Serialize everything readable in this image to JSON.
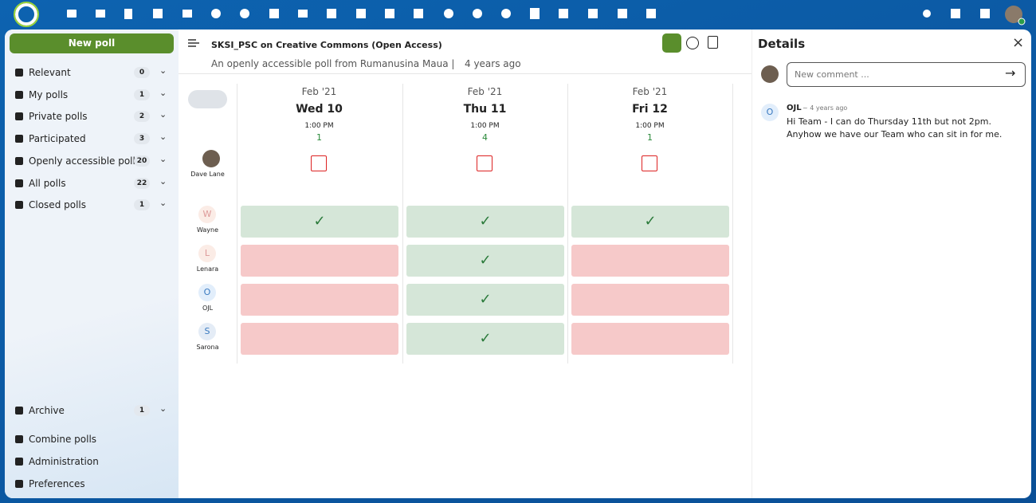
{
  "sidebar": {
    "new_poll": "New poll",
    "items": [
      {
        "label": "Relevant",
        "count": "0"
      },
      {
        "label": "My polls",
        "count": "1"
      },
      {
        "label": "Private polls",
        "count": "2"
      },
      {
        "label": "Participated",
        "count": "3"
      },
      {
        "label": "Openly accessible polls",
        "count": "20"
      },
      {
        "label": "All polls",
        "count": "22"
      },
      {
        "label": "Closed polls",
        "count": "1"
      }
    ],
    "archive": {
      "label": "Archive",
      "count": "1"
    },
    "footer": [
      "Combine polls",
      "Administration",
      "Preferences"
    ]
  },
  "header": {
    "title": "SKSI_PSC on Creative Commons (Open Access)",
    "subtitle": "An openly accessible poll from Rumanusina Maua |",
    "age": "4 years ago"
  },
  "poll": {
    "current_user": "Dave Lane",
    "options": [
      {
        "month": "Feb '21",
        "day": "Wed 10",
        "time": "1:00 PM",
        "yes": "1"
      },
      {
        "month": "Feb '21",
        "day": "Thu 11",
        "time": "1:00 PM",
        "yes": "4"
      },
      {
        "month": "Feb '21",
        "day": "Fri 12",
        "time": "1:00 PM",
        "yes": "1"
      }
    ],
    "participants": [
      {
        "initial": "W",
        "name": "Wayne",
        "votes": [
          true,
          true,
          true
        ]
      },
      {
        "initial": "L",
        "name": "Lenara",
        "votes": [
          false,
          true,
          false
        ]
      },
      {
        "initial": "O",
        "name": "OJL",
        "votes": [
          false,
          true,
          false
        ]
      },
      {
        "initial": "S",
        "name": "Sarona",
        "votes": [
          false,
          true,
          false
        ]
      }
    ]
  },
  "details": {
    "title": "Details",
    "placeholder": "New comment ...",
    "comments": [
      {
        "initial": "O",
        "author": "OJL",
        "age": "~ 4 years ago",
        "text": "Hi Team - I can do Thursday 11th but not 2pm. Anyhow we have our Team who can sit in for me."
      }
    ]
  }
}
